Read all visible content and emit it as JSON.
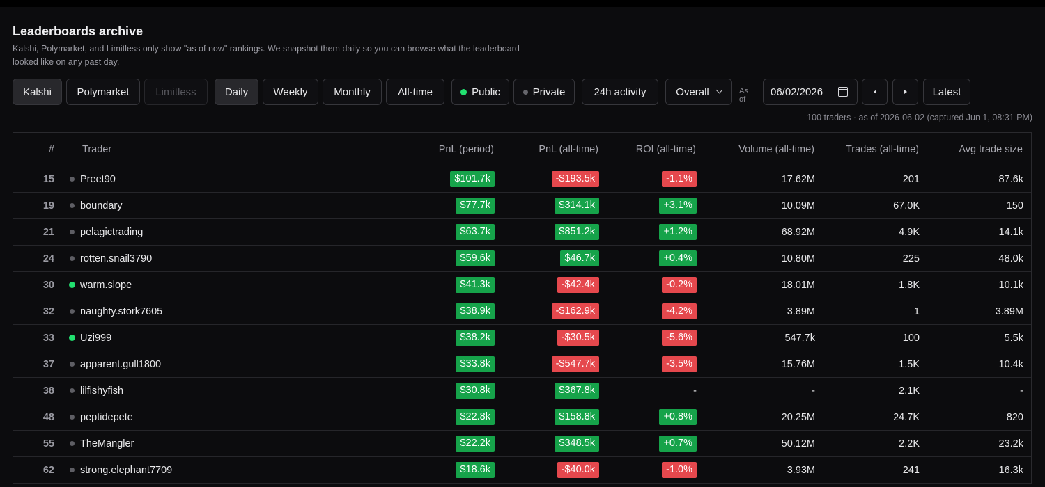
{
  "page": {
    "title": "Leaderboards archive",
    "subtitle": "Kalshi, Polymarket, and Limitless only show \"as of now\" rankings. We snapshot them daily so you can browse what the leaderboard looked like on any past day."
  },
  "filters": {
    "platforms": [
      {
        "label": "Kalshi",
        "state": "active"
      },
      {
        "label": "Polymarket",
        "state": "normal"
      },
      {
        "label": "Limitless",
        "state": "disabled"
      }
    ],
    "periods": [
      {
        "label": "Daily",
        "state": "active"
      },
      {
        "label": "Weekly",
        "state": "normal"
      },
      {
        "label": "Monthly",
        "state": "normal"
      },
      {
        "label": "All-time",
        "state": "normal"
      }
    ],
    "visibility": [
      {
        "label": "Public",
        "dot": "green"
      },
      {
        "label": "Private",
        "dot": "gray"
      }
    ],
    "activity_label": "24h activity",
    "category_select": "Overall",
    "as_of_label": "As of",
    "date_value": "06/02/2026",
    "prev_icon": "caret-left-icon",
    "next_icon": "caret-right-icon",
    "latest_label": "Latest"
  },
  "meta_text": "100 traders · as of 2026-06-02 (captured Jun 1, 08:31 PM)",
  "colors": {
    "positive": "#16a34a",
    "negative": "#e5484d",
    "live_dot": "#22e070"
  },
  "table": {
    "columns": [
      "#",
      "Trader",
      "PnL (period)",
      "PnL (all-time)",
      "ROI (all-time)",
      "Volume (all-time)",
      "Trades (all-time)",
      "Avg trade size"
    ],
    "rows": [
      {
        "rank": "15",
        "trader": "Preet90",
        "live": false,
        "pnl_period": "$101.7k",
        "pnl_period_sign": "pos",
        "pnl_all": "-$193.5k",
        "pnl_all_sign": "neg",
        "roi": "-1.1%",
        "roi_sign": "neg",
        "volume": "17.62M",
        "trades": "201",
        "avg": "87.6k"
      },
      {
        "rank": "19",
        "trader": "boundary",
        "live": false,
        "pnl_period": "$77.7k",
        "pnl_period_sign": "pos",
        "pnl_all": "$314.1k",
        "pnl_all_sign": "pos",
        "roi": "+3.1%",
        "roi_sign": "pos",
        "volume": "10.09M",
        "trades": "67.0K",
        "avg": "150"
      },
      {
        "rank": "21",
        "trader": "pelagictrading",
        "live": false,
        "pnl_period": "$63.7k",
        "pnl_period_sign": "pos",
        "pnl_all": "$851.2k",
        "pnl_all_sign": "pos",
        "roi": "+1.2%",
        "roi_sign": "pos",
        "volume": "68.92M",
        "trades": "4.9K",
        "avg": "14.1k"
      },
      {
        "rank": "24",
        "trader": "rotten.snail3790",
        "live": false,
        "pnl_period": "$59.6k",
        "pnl_period_sign": "pos",
        "pnl_all": "$46.7k",
        "pnl_all_sign": "pos",
        "roi": "+0.4%",
        "roi_sign": "pos",
        "volume": "10.80M",
        "trades": "225",
        "avg": "48.0k"
      },
      {
        "rank": "30",
        "trader": "warm.slope",
        "live": true,
        "pnl_period": "$41.3k",
        "pnl_period_sign": "pos",
        "pnl_all": "-$42.4k",
        "pnl_all_sign": "neg",
        "roi": "-0.2%",
        "roi_sign": "neg",
        "volume": "18.01M",
        "trades": "1.8K",
        "avg": "10.1k"
      },
      {
        "rank": "32",
        "trader": "naughty.stork7605",
        "live": false,
        "pnl_period": "$38.9k",
        "pnl_period_sign": "pos",
        "pnl_all": "-$162.9k",
        "pnl_all_sign": "neg",
        "roi": "-4.2%",
        "roi_sign": "neg",
        "volume": "3.89M",
        "trades": "1",
        "avg": "3.89M"
      },
      {
        "rank": "33",
        "trader": "Uzi999",
        "live": true,
        "pnl_period": "$38.2k",
        "pnl_period_sign": "pos",
        "pnl_all": "-$30.5k",
        "pnl_all_sign": "neg",
        "roi": "-5.6%",
        "roi_sign": "neg",
        "volume": "547.7k",
        "trades": "100",
        "avg": "5.5k"
      },
      {
        "rank": "37",
        "trader": "apparent.gull1800",
        "live": false,
        "pnl_period": "$33.8k",
        "pnl_period_sign": "pos",
        "pnl_all": "-$547.7k",
        "pnl_all_sign": "neg",
        "roi": "-3.5%",
        "roi_sign": "neg",
        "volume": "15.76M",
        "trades": "1.5K",
        "avg": "10.4k"
      },
      {
        "rank": "38",
        "trader": "lilfishyfish",
        "live": false,
        "pnl_period": "$30.8k",
        "pnl_period_sign": "pos",
        "pnl_all": "$367.8k",
        "pnl_all_sign": "pos",
        "roi": "-",
        "roi_sign": "none",
        "volume": "-",
        "trades": "2.1K",
        "avg": "-"
      },
      {
        "rank": "48",
        "trader": "peptidepete",
        "live": false,
        "pnl_period": "$22.8k",
        "pnl_period_sign": "pos",
        "pnl_all": "$158.8k",
        "pnl_all_sign": "pos",
        "roi": "+0.8%",
        "roi_sign": "pos",
        "volume": "20.25M",
        "trades": "24.7K",
        "avg": "820"
      },
      {
        "rank": "55",
        "trader": "TheMangler",
        "live": false,
        "pnl_period": "$22.2k",
        "pnl_period_sign": "pos",
        "pnl_all": "$348.5k",
        "pnl_all_sign": "pos",
        "roi": "+0.7%",
        "roi_sign": "pos",
        "volume": "50.12M",
        "trades": "2.2K",
        "avg": "23.2k"
      },
      {
        "rank": "62",
        "trader": "strong.elephant7709",
        "live": false,
        "pnl_period": "$18.6k",
        "pnl_period_sign": "pos",
        "pnl_all": "-$40.0k",
        "pnl_all_sign": "neg",
        "roi": "-1.0%",
        "roi_sign": "neg",
        "volume": "3.93M",
        "trades": "241",
        "avg": "16.3k"
      }
    ]
  }
}
